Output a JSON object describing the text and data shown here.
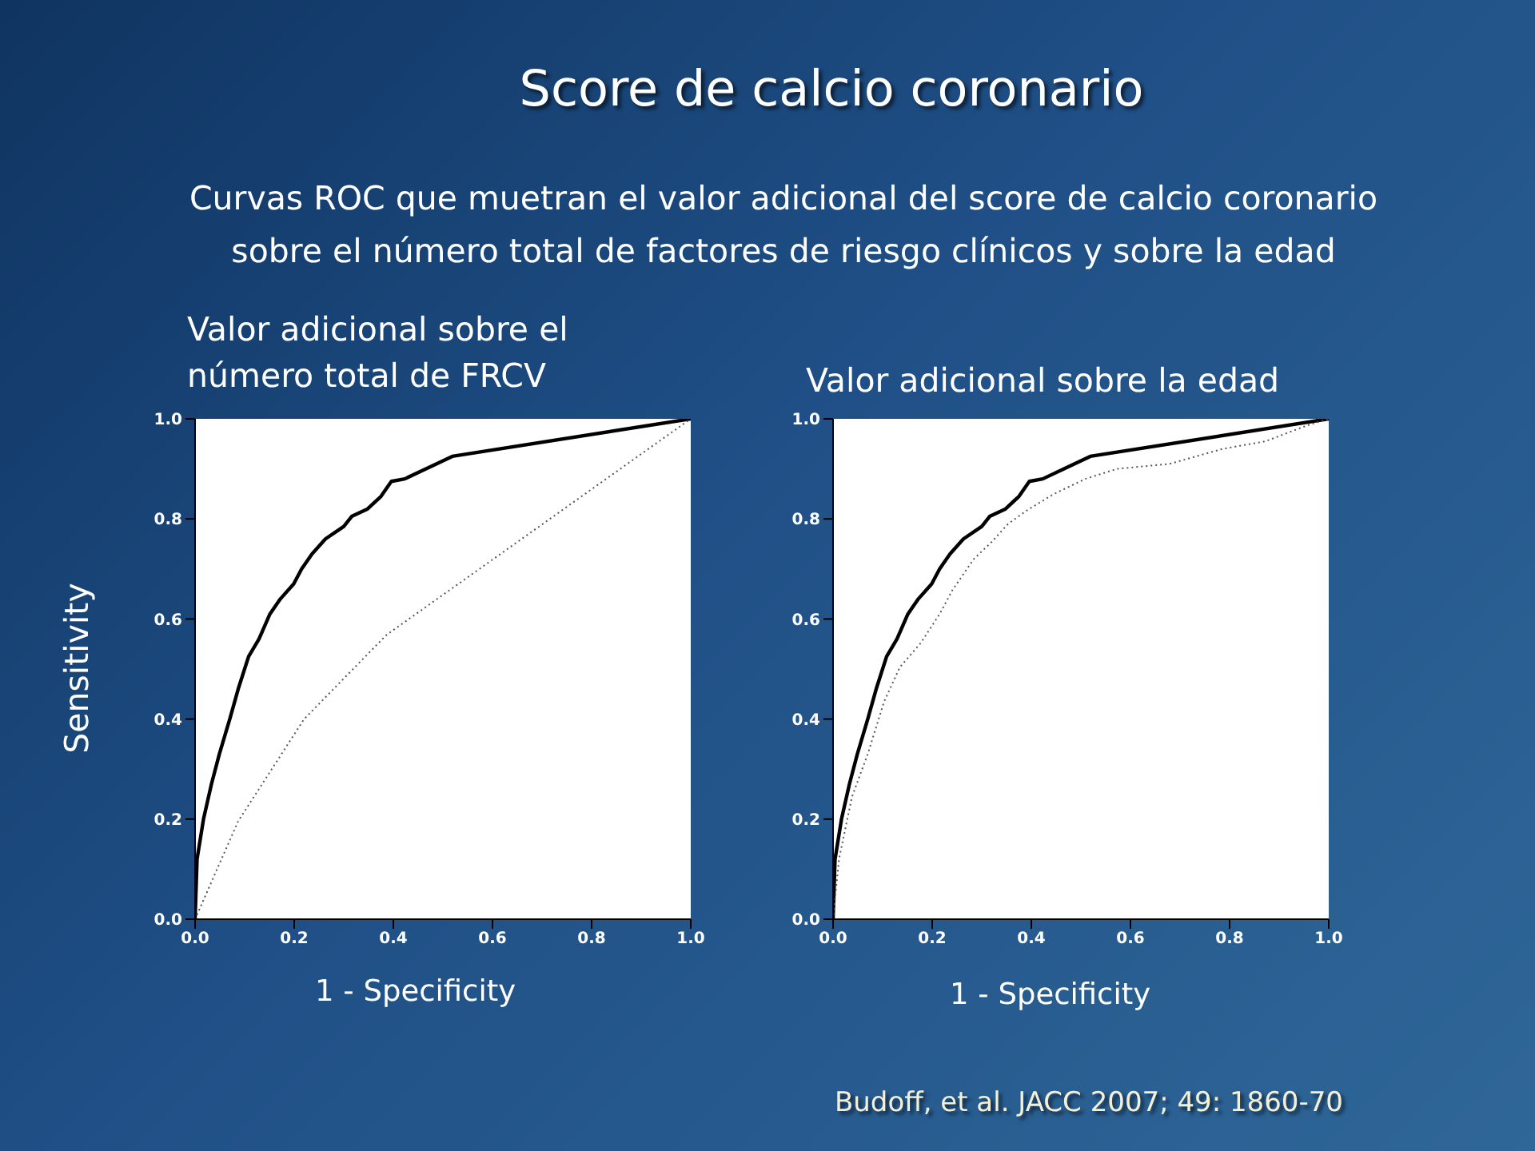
{
  "chart_data": [
    {
      "type": "line",
      "title": "Valor adicional sobre el número total de FRCV",
      "xlabel": "1 - Specificity",
      "ylabel": "Sensitivity",
      "annotations": [
        "Score de calcio coronario",
        "Curvas ROC que muetran el valor adicional del score de calcio coronario sobre el número total de factores de riesgo clínicos y sobre la edad"
      ],
      "xlim": [
        0,
        1
      ],
      "ylim": [
        0,
        1
      ],
      "xticks": [
        {
          "value": 0,
          "label": "0.0"
        },
        {
          "value": 0.2,
          "label": "0.2"
        },
        {
          "value": 0.4,
          "label": "0.4"
        },
        {
          "value": 0.6,
          "label": "0.6"
        },
        {
          "value": 0.8,
          "label": "0.8"
        },
        {
          "value": 1,
          "label": "1.0"
        }
      ],
      "yticks": [
        {
          "value": 0,
          "label": "0.0"
        },
        {
          "value": 0.2,
          "label": "0.2"
        },
        {
          "value": 0.4,
          "label": "0.4"
        },
        {
          "value": 0.6,
          "label": "0.6"
        },
        {
          "value": 0.8,
          "label": "0.8"
        },
        {
          "value": 1,
          "label": "1.0"
        }
      ],
      "grid": false,
      "marker": "none",
      "series": [
        {
          "color": "#000000",
          "line_style": "solid",
          "x": [
            0,
            0.004,
            0.017,
            0.033,
            0.049,
            0.07,
            0.087,
            0.108,
            0.129,
            0.151,
            0.172,
            0.199,
            0.215,
            0.236,
            0.263,
            0.3,
            0.316,
            0.348,
            0.375,
            0.396,
            0.423,
            0.466,
            0.519,
            1
          ],
          "values": [
            0,
            0.12,
            0.2,
            0.27,
            0.33,
            0.4,
            0.46,
            0.525,
            0.56,
            0.61,
            0.64,
            0.67,
            0.7,
            0.73,
            0.76,
            0.785,
            0.805,
            0.82,
            0.845,
            0.875,
            0.88,
            0.9,
            0.925,
            1
          ]
        },
        {
          "color": "#555555",
          "line_style": "dotted",
          "x": [
            0,
            0.087,
            0.22,
            0.386,
            1
          ],
          "values": [
            0,
            0.196,
            0.4,
            0.568,
            1
          ]
        }
      ]
    },
    {
      "type": "line",
      "title": "Valor adicional sobre la edad",
      "xlabel": "1 - Specificity",
      "annotations": [
        "Budoff, et al. JACC 2007; 49: 1860-70"
      ],
      "xlim": [
        0,
        1
      ],
      "ylim": [
        0,
        1
      ],
      "xticks": [
        {
          "value": 0,
          "label": "0.0"
        },
        {
          "value": 0.2,
          "label": "0.2"
        },
        {
          "value": 0.4,
          "label": "0.4"
        },
        {
          "value": 0.6,
          "label": "0.6"
        },
        {
          "value": 0.8,
          "label": "0.8"
        },
        {
          "value": 1,
          "label": "1.0"
        }
      ],
      "yticks": [
        {
          "value": 0,
          "label": "0.0"
        },
        {
          "value": 0.2,
          "label": "0.2"
        },
        {
          "value": 0.4,
          "label": "0.4"
        },
        {
          "value": 0.6,
          "label": "0.6"
        },
        {
          "value": 0.8,
          "label": "0.8"
        },
        {
          "value": 1,
          "label": "1.0"
        }
      ],
      "grid": false,
      "marker": "none",
      "series": [
        {
          "color": "#000000",
          "line_style": "solid",
          "x": [
            0,
            0.004,
            0.017,
            0.033,
            0.049,
            0.07,
            0.087,
            0.108,
            0.129,
            0.151,
            0.172,
            0.199,
            0.215,
            0.236,
            0.263,
            0.3,
            0.316,
            0.348,
            0.375,
            0.396,
            0.423,
            0.466,
            0.519,
            1
          ],
          "values": [
            0,
            0.12,
            0.2,
            0.27,
            0.33,
            0.4,
            0.46,
            0.525,
            0.56,
            0.61,
            0.64,
            0.67,
            0.7,
            0.73,
            0.76,
            0.785,
            0.805,
            0.82,
            0.845,
            0.875,
            0.88,
            0.9,
            0.925,
            1
          ]
        },
        {
          "color": "#555555",
          "line_style": "dotted",
          "x": [
            0,
            0.012,
            0.038,
            0.07,
            0.103,
            0.135,
            0.177,
            0.215,
            0.241,
            0.284,
            0.32,
            0.353,
            0.391,
            0.444,
            0.509,
            0.573,
            0.679,
            0.786,
            0.872,
            0.957,
            1
          ],
          "values": [
            0,
            0.12,
            0.244,
            0.33,
            0.435,
            0.504,
            0.552,
            0.61,
            0.658,
            0.72,
            0.754,
            0.79,
            0.817,
            0.849,
            0.88,
            0.9,
            0.91,
            0.94,
            0.955,
            0.987,
            1
          ]
        }
      ]
    }
  ]
}
